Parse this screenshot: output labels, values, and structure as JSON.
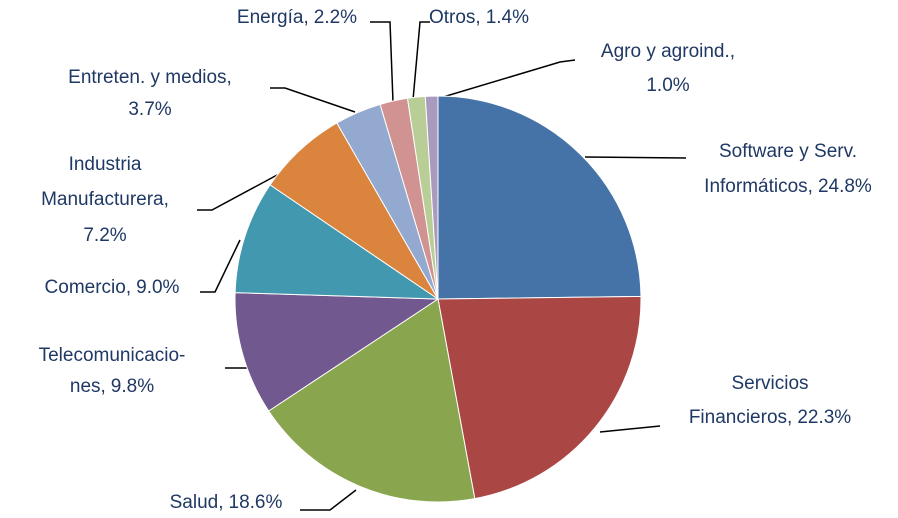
{
  "chart_data": {
    "type": "pie",
    "categories": [
      "Software y Serv. Informáticos,",
      "Servicios Financieros,",
      "Salud,",
      "Telecomunicacio-nes,",
      "Comercio,",
      "Industria Manufacturera,",
      "Entreten. y medios,",
      "Energía,",
      "Otros,",
      "Agro y agroind.,"
    ],
    "values": [
      24.8,
      22.3,
      18.6,
      9.8,
      9.0,
      7.2,
      3.7,
      2.2,
      1.4,
      1.0
    ],
    "value_labels": [
      "24.8%",
      "22.3%",
      "18.6%",
      "9.8%",
      "9.0%",
      "7.2%",
      "3.7%",
      "2.2%",
      "1.4%",
      "1.0%"
    ],
    "colors": [
      "#4572a7",
      "#aa4643",
      "#89a54e",
      "#71588f",
      "#4198af",
      "#db843d",
      "#93a9cf",
      "#d19392",
      "#b9cd96",
      "#a99bbd"
    ]
  }
}
